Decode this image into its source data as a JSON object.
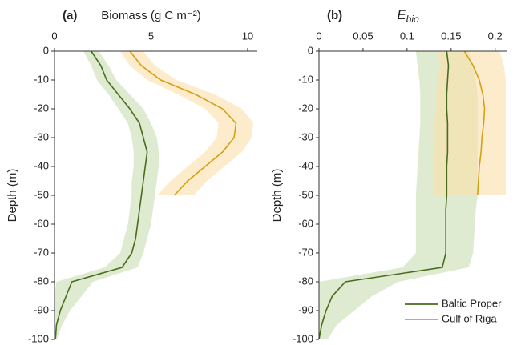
{
  "chart_data": [
    {
      "type": "line",
      "panel_label": "(a)",
      "title": "Biomass (g C m⁻²)",
      "y_label": "Depth (m)",
      "xlim": [
        0,
        10.5
      ],
      "xticks": [
        0,
        5,
        10
      ],
      "ylim": [
        -100,
        0
      ],
      "yticks": [
        0,
        -10,
        -20,
        -30,
        -40,
        -50,
        -60,
        -70,
        -80,
        -90,
        -100
      ],
      "series": [
        {
          "color": "#4a6b1e",
          "band_color": "#c9ddb3",
          "y": [
            0,
            -5,
            -10,
            -15,
            -20,
            -25,
            -30,
            -35,
            -40,
            -45,
            -50,
            -55,
            -60,
            -65,
            -70,
            -75,
            -80,
            -85,
            -90,
            -95,
            -100
          ],
          "x": [
            1.9,
            2.4,
            2.7,
            3.3,
            3.9,
            4.4,
            4.6,
            4.8,
            4.7,
            4.6,
            4.5,
            4.4,
            4.3,
            4.2,
            4.0,
            3.5,
            0.9,
            0.6,
            0.3,
            0.1,
            0.05
          ],
          "lower": [
            1.5,
            1.9,
            2.2,
            2.8,
            3.3,
            3.8,
            4.0,
            4.1,
            4.1,
            4.0,
            4.0,
            3.9,
            3.8,
            3.6,
            3.4,
            2.6,
            0.1,
            0,
            0,
            0,
            0
          ],
          "upper": [
            2.3,
            2.8,
            3.2,
            3.9,
            4.6,
            5.0,
            5.3,
            5.4,
            5.4,
            5.3,
            5.2,
            5.1,
            5.0,
            4.8,
            4.6,
            4.3,
            2.0,
            1.4,
            0.8,
            0.4,
            0.1
          ]
        },
        {
          "color": "#d4a017",
          "band_color": "#fbe0a8",
          "y": [
            0,
            -5,
            -10,
            -15,
            -20,
            -25,
            -30,
            -35,
            -40,
            -45,
            -50
          ],
          "x": [
            3.9,
            4.5,
            5.5,
            7.3,
            8.7,
            9.4,
            9.3,
            8.7,
            7.8,
            6.9,
            6.2
          ],
          "lower": [
            3.4,
            3.9,
            4.8,
            6.4,
            7.8,
            8.5,
            8.4,
            7.8,
            6.9,
            6.0,
            5.3
          ],
          "upper": [
            4.6,
            5.2,
            6.3,
            8.3,
            9.7,
            10.3,
            10.2,
            9.7,
            8.8,
            7.9,
            7.2
          ]
        }
      ]
    },
    {
      "type": "line",
      "panel_label": "(b)",
      "title": "E",
      "title_sub": "bio",
      "y_label": "Depth (m)",
      "xlim": [
        0,
        0.213
      ],
      "xticks": [
        0,
        0.05,
        0.1,
        0.15,
        0.2
      ],
      "ylim": [
        -100,
        0
      ],
      "yticks": [
        0,
        -10,
        -20,
        -30,
        -40,
        -50,
        -60,
        -70,
        -80,
        -90,
        -100
      ],
      "legend": "lower right",
      "series": [
        {
          "name": "Baltic Proper",
          "color": "#4a6b1e",
          "band_color": "#c9ddb3",
          "y": [
            0,
            -5,
            -10,
            -15,
            -20,
            -25,
            -30,
            -35,
            -40,
            -45,
            -50,
            -55,
            -60,
            -65,
            -70,
            -75,
            -80,
            -85,
            -90,
            -95,
            -100
          ],
          "x": [
            0.145,
            0.147,
            0.146,
            0.145,
            0.145,
            0.146,
            0.146,
            0.146,
            0.145,
            0.145,
            0.145,
            0.144,
            0.144,
            0.144,
            0.144,
            0.14,
            0.03,
            0.015,
            0.008,
            0.003,
            0
          ],
          "lower": [
            0.11,
            0.112,
            0.114,
            0.115,
            0.115,
            0.115,
            0.114,
            0.113,
            0.112,
            0.111,
            0.11,
            0.11,
            0.11,
            0.11,
            0.11,
            0.095,
            0,
            0,
            0,
            0,
            0
          ],
          "upper": [
            0.17,
            0.175,
            0.178,
            0.18,
            0.18,
            0.18,
            0.18,
            0.18,
            0.18,
            0.18,
            0.18,
            0.178,
            0.177,
            0.176,
            0.175,
            0.17,
            0.09,
            0.06,
            0.04,
            0.02,
            0.01
          ]
        },
        {
          "name": "Gulf of Riga",
          "color": "#d4a017",
          "band_color": "#fbe0a8",
          "y": [
            0,
            -5,
            -10,
            -15,
            -20,
            -25,
            -30,
            -35,
            -40,
            -45,
            -50
          ],
          "x": [
            0.165,
            0.175,
            0.182,
            0.186,
            0.188,
            0.187,
            0.185,
            0.184,
            0.182,
            0.181,
            0.18
          ],
          "lower": [
            0.135,
            0.137,
            0.135,
            0.133,
            0.132,
            0.131,
            0.13,
            0.13,
            0.13,
            0.13,
            0.13
          ],
          "upper": [
            0.205,
            0.21,
            0.212,
            0.212,
            0.212,
            0.212,
            0.212,
            0.212,
            0.212,
            0.212,
            0.212
          ]
        }
      ]
    }
  ]
}
